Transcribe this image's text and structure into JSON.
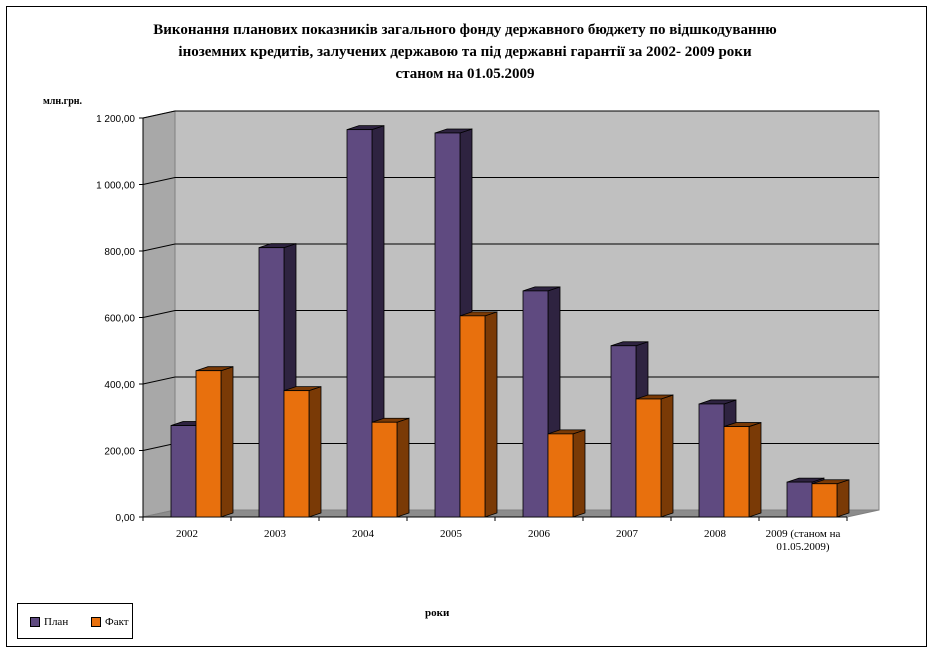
{
  "title_lines": [
    "Виконання планових показників загального фонду державного бюджету по відшкодуванню",
    "іноземних кредитів, залучених державою та під державні гарантії за 2002- 2009 роки",
    "станом на 01.05.2009"
  ],
  "colors": {
    "plan": "#5f4a80",
    "plan_side": "#2e2340",
    "fact": "#e8700d",
    "fact_side": "#7a3a06",
    "wall": "#c0c0c0",
    "wall_side": "#a8a8a8",
    "floor": "#8c8c8c"
  },
  "chart_data": {
    "type": "bar",
    "title": "Виконання планових показників загального фонду державного бюджету по відшкодуванню іноземних кредитів, залучених державою та під державні гарантії за 2002- 2009 роки станом на 01.05.2009",
    "ylabel": "млн.грн.",
    "xlabel": "роки",
    "categories": [
      "2002",
      "2003",
      "2004",
      "2005",
      "2006",
      "2007",
      "2008",
      "2009 (станом на 01.05.2009)"
    ],
    "category_lines": [
      [
        "2002"
      ],
      [
        "2003"
      ],
      [
        "2004"
      ],
      [
        "2005"
      ],
      [
        "2006"
      ],
      [
        "2007"
      ],
      [
        "2008"
      ],
      [
        "2009 (станом на",
        "01.05.2009)"
      ]
    ],
    "series": [
      {
        "name": "План",
        "values": [
          275,
          810,
          1165,
          1155,
          680,
          515,
          340,
          105
        ]
      },
      {
        "name": "Факт",
        "values": [
          440,
          380,
          285,
          605,
          250,
          355,
          272,
          100
        ]
      }
    ],
    "ylim": [
      0,
      1200
    ],
    "yticks": [
      0,
      200,
      400,
      600,
      800,
      1000,
      1200
    ],
    "ytick_labels": [
      "0,00",
      "200,00",
      "400,00",
      "600,00",
      "800,00",
      "1 000,00",
      "1 200,00"
    ],
    "grid": true,
    "legend_position": "bottom-left"
  }
}
